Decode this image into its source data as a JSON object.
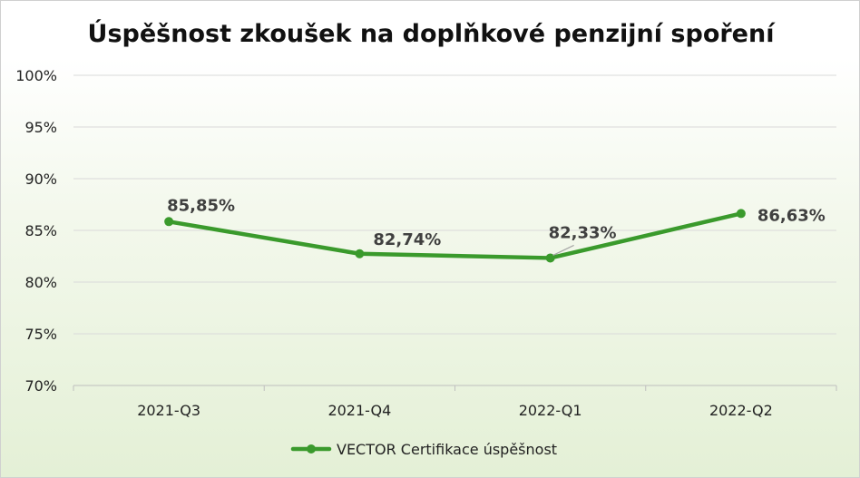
{
  "chart_data": {
    "type": "line",
    "title": "Úspěšnost zkoušek na doplňkové penzijní spoření",
    "xlabel": "",
    "ylabel": "",
    "categories": [
      "2021-Q3",
      "2021-Q4",
      "2022-Q1",
      "2022-Q2"
    ],
    "series": [
      {
        "name": "VECTOR Certifikace úspěšnost",
        "values": [
          85.85,
          82.74,
          82.33,
          86.63
        ],
        "labels": [
          "85,85%",
          "82,74%",
          "82,33%",
          "86,63%"
        ],
        "color": "#3a9a2c"
      }
    ],
    "ylim": [
      70,
      100
    ],
    "yticks": [
      70,
      75,
      80,
      85,
      90,
      95,
      100
    ],
    "ytick_labels": [
      "70%",
      "75%",
      "80%",
      "85%",
      "90%",
      "95%",
      "100%"
    ],
    "grid": true,
    "legend": "bottom"
  }
}
